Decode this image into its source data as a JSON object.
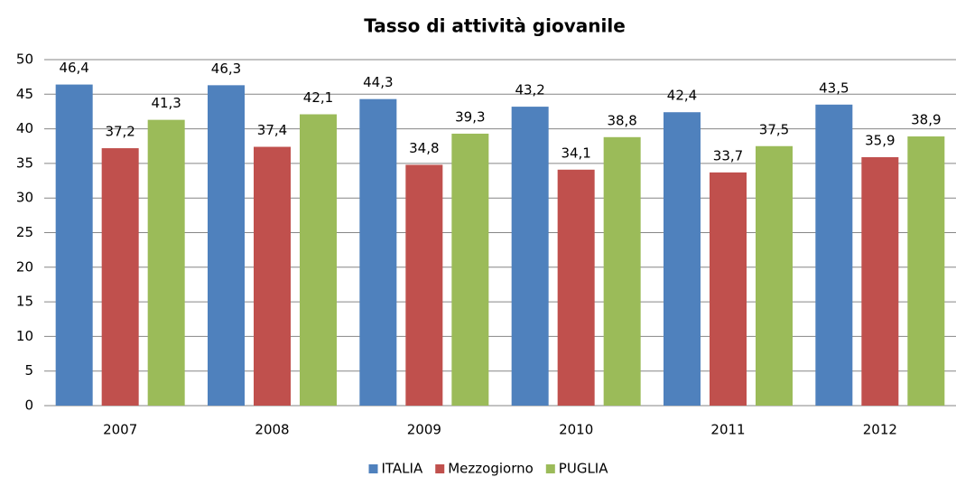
{
  "chart_data": {
    "type": "bar",
    "title": "Tasso di attività giovanile",
    "categories": [
      "2007",
      "2008",
      "2009",
      "2010",
      "2011",
      "2012"
    ],
    "series": [
      {
        "name": "ITALIA",
        "color": "#4f81bd",
        "values": [
          46.4,
          46.3,
          44.3,
          43.2,
          42.4,
          43.5
        ],
        "value_labels": [
          "46,4",
          "46,3",
          "44,3",
          "43,2",
          "42,4",
          "43,5"
        ]
      },
      {
        "name": "Mezzogiorno",
        "color": "#c0504d",
        "values": [
          37.2,
          37.4,
          34.8,
          34.1,
          33.7,
          35.9
        ],
        "value_labels": [
          "37,2",
          "37,4",
          "34,8",
          "34,1",
          "33,7",
          "35,9"
        ]
      },
      {
        "name": "PUGLIA",
        "color": "#9bbb59",
        "values": [
          41.3,
          42.1,
          39.3,
          38.8,
          37.5,
          38.9
        ],
        "value_labels": [
          "41,3",
          "42,1",
          "39,3",
          "38,8",
          "37,5",
          "38,9"
        ]
      }
    ],
    "ylim": [
      0,
      50
    ],
    "yticks": [
      0,
      5,
      10,
      15,
      20,
      25,
      30,
      35,
      40,
      45,
      50
    ],
    "grid": true,
    "legend": "bottom"
  }
}
